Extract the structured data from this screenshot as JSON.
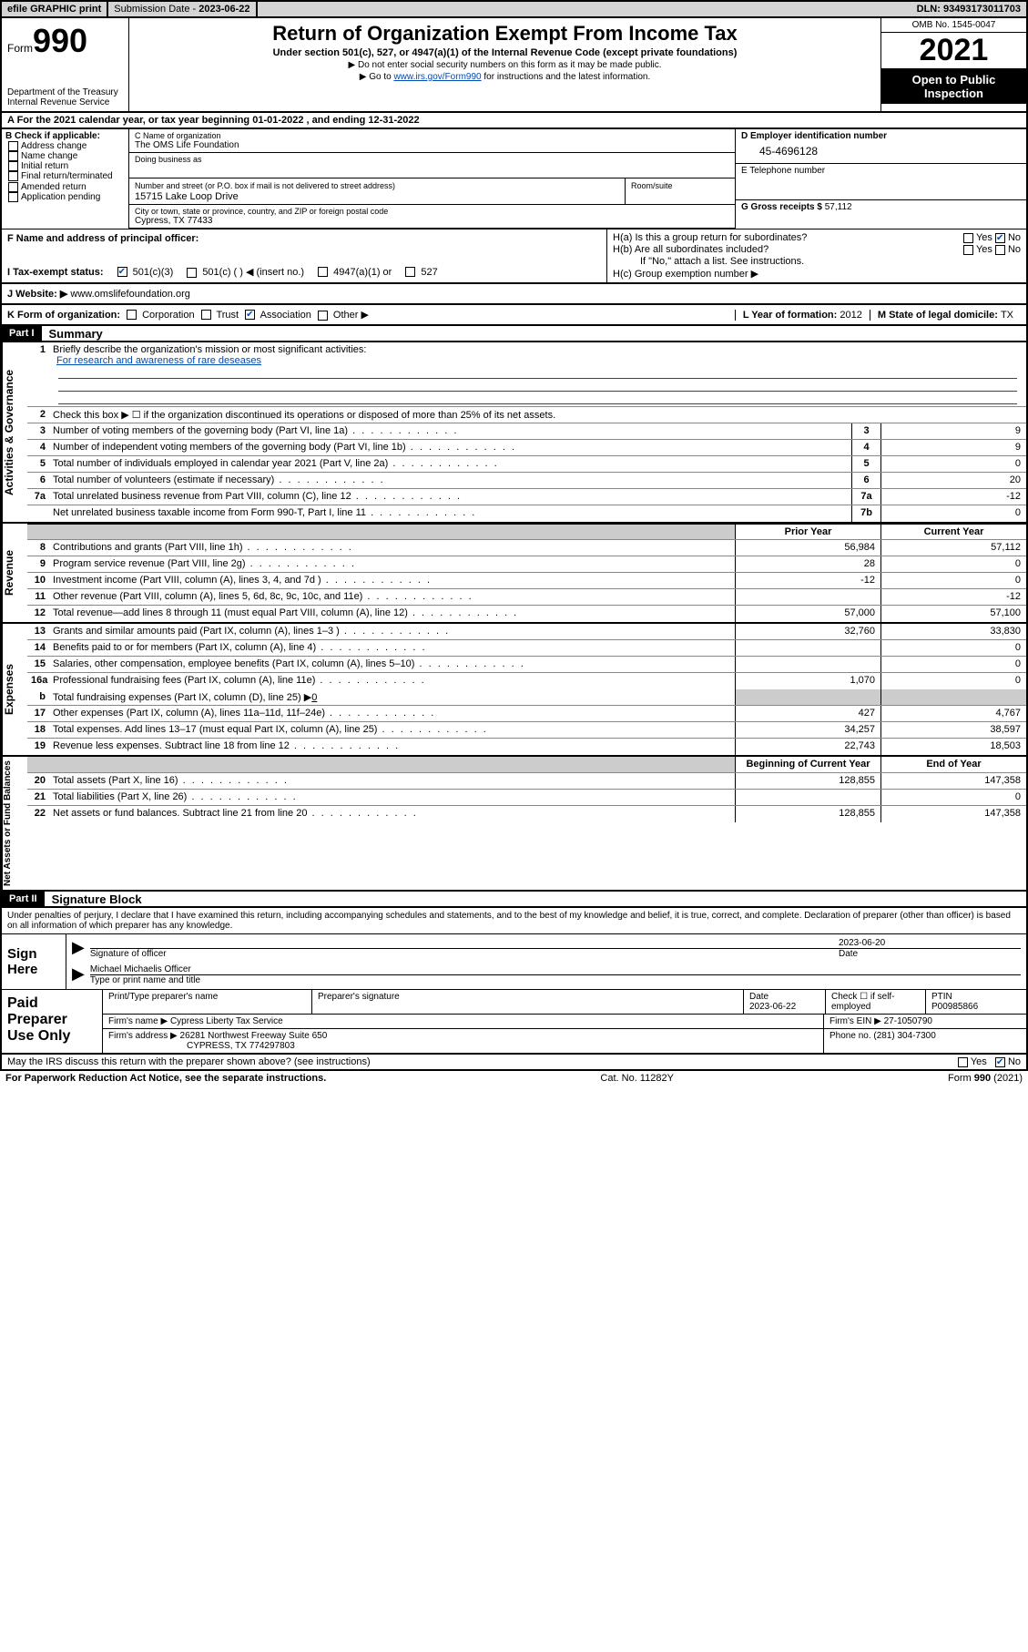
{
  "topbar": {
    "efile": "efile GRAPHIC print",
    "subdate_label": "Submission Date - ",
    "subdate": "2023-06-22",
    "dln_label": "DLN: ",
    "dln": "93493173011703"
  },
  "header": {
    "form_label": "Form",
    "form_num": "990",
    "dept": "Department of the Treasury\nInternal Revenue Service",
    "title": "Return of Organization Exempt From Income Tax",
    "sub": "Under section 501(c), 527, or 4947(a)(1) of the Internal Revenue Code (except private foundations)",
    "note1": "▶ Do not enter social security numbers on this form as it may be made public.",
    "note2_pre": "▶ Go to ",
    "note2_link": "www.irs.gov/Form990",
    "note2_post": " for instructions and the latest information.",
    "omb": "OMB No. 1545-0047",
    "year": "2021",
    "open": "Open to Public Inspection"
  },
  "rowA": {
    "pre": "A For the 2021 calendar year, or tax year beginning ",
    "begin": "01-01-2022",
    "mid": " , and ending ",
    "end": "12-31-2022"
  },
  "colB": {
    "title": "B Check if applicable:",
    "items": [
      "Address change",
      "Name change",
      "Initial return",
      "Final return/terminated",
      "Amended return",
      "Application pending"
    ]
  },
  "colC": {
    "name_lbl": "C Name of organization",
    "name": "The OMS Life Foundation",
    "dba_lbl": "Doing business as",
    "addr_lbl": "Number and street (or P.O. box if mail is not delivered to street address)",
    "addr": "15715 Lake Loop Drive",
    "room_lbl": "Room/suite",
    "city_lbl": "City or town, state or province, country, and ZIP or foreign postal code",
    "city": "Cypress, TX  77433"
  },
  "colD": {
    "ein_lbl": "D Employer identification number",
    "ein": "45-4696128",
    "tel_lbl": "E Telephone number",
    "gross_lbl": "G Gross receipts $ ",
    "gross": "57,112"
  },
  "rowF": {
    "label": "F  Name and address of principal officer:"
  },
  "rowH": {
    "ha": "H(a)  Is this a group return for subordinates?",
    "hb": "H(b)  Are all subordinates included?",
    "hb_note": "If \"No,\" attach a list. See instructions.",
    "hc": "H(c)  Group exemption number ▶",
    "yes": "Yes",
    "no": "No"
  },
  "rowI": {
    "label": "I   Tax-exempt status:",
    "o1": "501(c)(3)",
    "o2": "501(c) (  ) ◀ (insert no.)",
    "o3": "4947(a)(1) or",
    "o4": "527"
  },
  "rowJ": {
    "label": "J   Website: ▶ ",
    "val": "www.omslifefoundation.org"
  },
  "rowK": {
    "label": "K Form of organization:",
    "o1": "Corporation",
    "o2": "Trust",
    "o3": "Association",
    "o4": "Other ▶",
    "L": "L Year of formation: ",
    "Lval": "2012",
    "M": "M State of legal domicile: ",
    "Mval": "TX"
  },
  "part1": {
    "hdr": "Part I",
    "title": "Summary"
  },
  "summary": {
    "line1_lbl": "1",
    "line1": "Briefly describe the organization's mission or most significant activities:",
    "mission": "For research and awareness of rare deseases",
    "line2_lbl": "2",
    "line2": "Check this box ▶ ☐  if the organization discontinued its operations or disposed of more than 25% of its net assets.",
    "rows_top": [
      {
        "n": "3",
        "d": "Number of voting members of the governing body (Part VI, line 1a)",
        "box": "3",
        "v": "9"
      },
      {
        "n": "4",
        "d": "Number of independent voting members of the governing body (Part VI, line 1b)",
        "box": "4",
        "v": "9"
      },
      {
        "n": "5",
        "d": "Total number of individuals employed in calendar year 2021 (Part V, line 2a)",
        "box": "5",
        "v": "0"
      },
      {
        "n": "6",
        "d": "Total number of volunteers (estimate if necessary)",
        "box": "6",
        "v": "20"
      },
      {
        "n": "7a",
        "d": "Total unrelated business revenue from Part VIII, column (C), line 12",
        "box": "7a",
        "v": "-12"
      },
      {
        "n": "",
        "d": "Net unrelated business taxable income from Form 990-T, Part I, line 11",
        "box": "7b",
        "v": "0"
      }
    ],
    "col_hdr": {
      "p": "Prior Year",
      "c": "Current Year",
      "b": "Beginning of Current Year",
      "e": "End of Year"
    },
    "revenue": [
      {
        "n": "8",
        "d": "Contributions and grants (Part VIII, line 1h)",
        "p": "56,984",
        "c": "57,112"
      },
      {
        "n": "9",
        "d": "Program service revenue (Part VIII, line 2g)",
        "p": "28",
        "c": "0"
      },
      {
        "n": "10",
        "d": "Investment income (Part VIII, column (A), lines 3, 4, and 7d )",
        "p": "-12",
        "c": "0"
      },
      {
        "n": "11",
        "d": "Other revenue (Part VIII, column (A), lines 5, 6d, 8c, 9c, 10c, and 11e)",
        "p": "",
        "c": "-12"
      },
      {
        "n": "12",
        "d": "Total revenue—add lines 8 through 11 (must equal Part VIII, column (A), line 12)",
        "p": "57,000",
        "c": "57,100"
      }
    ],
    "expenses": [
      {
        "n": "13",
        "d": "Grants and similar amounts paid (Part IX, column (A), lines 1–3 )",
        "p": "32,760",
        "c": "33,830"
      },
      {
        "n": "14",
        "d": "Benefits paid to or for members (Part IX, column (A), line 4)",
        "p": "",
        "c": "0"
      },
      {
        "n": "15",
        "d": "Salaries, other compensation, employee benefits (Part IX, column (A), lines 5–10)",
        "p": "",
        "c": "0"
      },
      {
        "n": "16a",
        "d": "Professional fundraising fees (Part IX, column (A), line 11e)",
        "p": "1,070",
        "c": "0"
      }
    ],
    "line16b": {
      "n": "b",
      "d": "Total fundraising expenses (Part IX, column (D), line 25) ▶",
      "v": "0"
    },
    "expenses2": [
      {
        "n": "17",
        "d": "Other expenses (Part IX, column (A), lines 11a–11d, 11f–24e)",
        "p": "427",
        "c": "4,767"
      },
      {
        "n": "18",
        "d": "Total expenses. Add lines 13–17 (must equal Part IX, column (A), line 25)",
        "p": "34,257",
        "c": "38,597"
      },
      {
        "n": "19",
        "d": "Revenue less expenses. Subtract line 18 from line 12",
        "p": "22,743",
        "c": "18,503"
      }
    ],
    "netassets": [
      {
        "n": "20",
        "d": "Total assets (Part X, line 16)",
        "p": "128,855",
        "c": "147,358"
      },
      {
        "n": "21",
        "d": "Total liabilities (Part X, line 26)",
        "p": "",
        "c": "0"
      },
      {
        "n": "22",
        "d": "Net assets or fund balances. Subtract line 21 from line 20",
        "p": "128,855",
        "c": "147,358"
      }
    ]
  },
  "vtabs": {
    "ag": "Activities & Governance",
    "rev": "Revenue",
    "exp": "Expenses",
    "na": "Net Assets or Fund Balances"
  },
  "part2": {
    "hdr": "Part II",
    "title": "Signature Block"
  },
  "sig": {
    "decl": "Under penalties of perjury, I declare that I have examined this return, including accompanying schedules and statements, and to the best of my knowledge and belief, it is true, correct, and complete. Declaration of preparer (other than officer) is based on all information of which preparer has any knowledge.",
    "sign_here": "Sign Here",
    "sig_officer": "Signature of officer",
    "date_lbl": "Date",
    "date": "2023-06-20",
    "name": "Michael Michaelis  Officer",
    "type_lbl": "Type or print name and title"
  },
  "prep": {
    "label": "Paid Preparer Use Only",
    "h1": "Print/Type preparer's name",
    "h2": "Preparer's signature",
    "h3": "Date",
    "h3v": "2023-06-22",
    "h4": "Check ☐ if self-employed",
    "h5": "PTIN",
    "h5v": "P00985866",
    "firm_lbl": "Firm's name    ▶ ",
    "firm": "Cypress Liberty Tax Service",
    "ein_lbl": "Firm's EIN ▶ ",
    "ein": "27-1050790",
    "addr_lbl": "Firm's address ▶ ",
    "addr": "26281 Northwest Freeway Suite 650",
    "addr2": "CYPRESS, TX  774297803",
    "phone_lbl": "Phone no. ",
    "phone": "(281) 304-7300"
  },
  "bottom": {
    "q": "May the IRS discuss this return with the preparer shown above? (see instructions)",
    "yes": "Yes",
    "no": "No"
  },
  "footer": {
    "l": "For Paperwork Reduction Act Notice, see the separate instructions.",
    "m": "Cat. No. 11282Y",
    "r": "Form 990 (2021)"
  }
}
